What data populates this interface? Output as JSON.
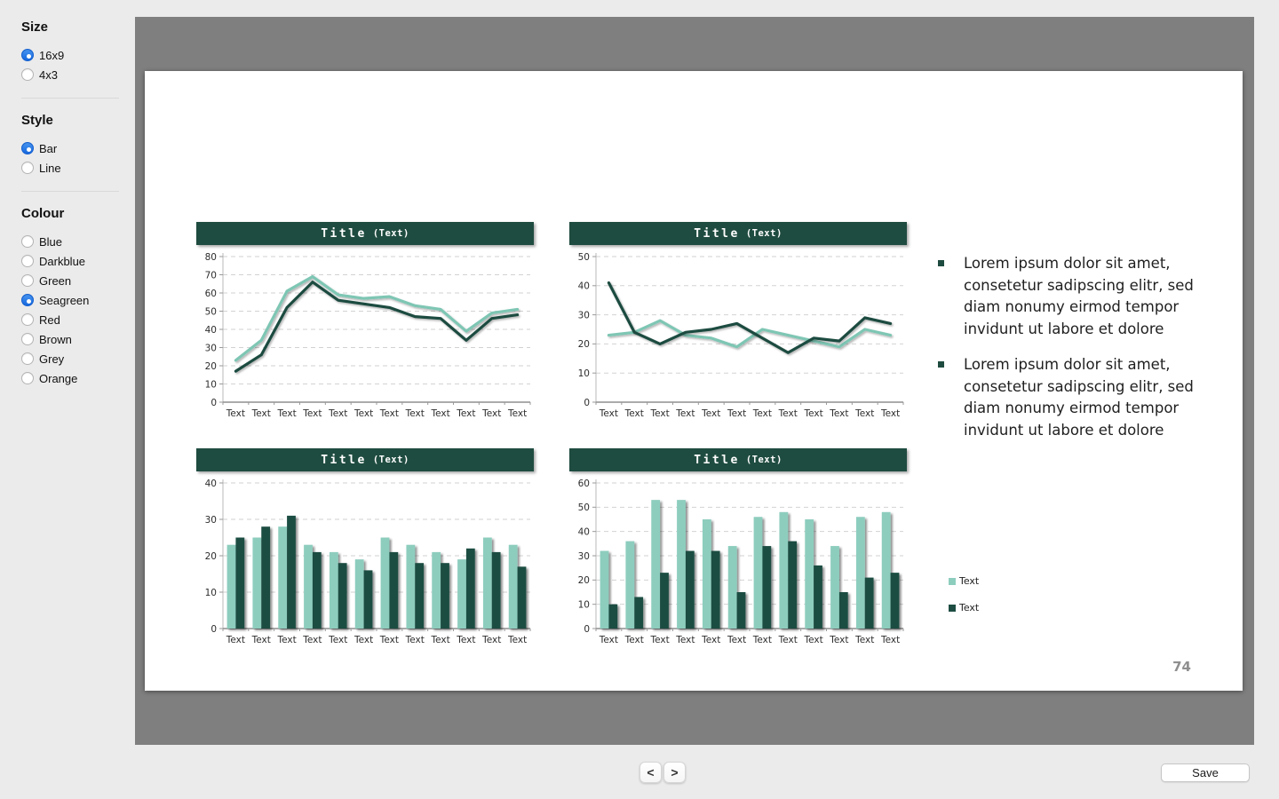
{
  "sidebar": {
    "groups": [
      {
        "name": "size",
        "label": "Size",
        "options": [
          {
            "label": "16x9",
            "selected": true
          },
          {
            "label": "4x3",
            "selected": false
          }
        ]
      },
      {
        "name": "style",
        "label": "Style",
        "options": [
          {
            "label": "Bar",
            "selected": true
          },
          {
            "label": "Line",
            "selected": false
          }
        ]
      },
      {
        "name": "colour",
        "label": "Colour",
        "options": [
          {
            "label": "Blue",
            "selected": false
          },
          {
            "label": "Darkblue",
            "selected": false
          },
          {
            "label": "Green",
            "selected": false
          },
          {
            "label": "Seagreen",
            "selected": true
          },
          {
            "label": "Red",
            "selected": false
          },
          {
            "label": "Brown",
            "selected": false
          },
          {
            "label": "Grey",
            "selected": false
          },
          {
            "label": "Orange",
            "selected": false
          }
        ]
      }
    ]
  },
  "slide": {
    "bullets": [
      "Lorem ipsum dolor sit amet, consetetur sadipscing elitr, sed diam nonumy eirmod tempor invidunt ut labore et dolore",
      "Lorem ipsum dolor sit amet, consetetur sadipscing elitr, sed diam nonumy eirmod tempor invidunt ut labore et dolore"
    ],
    "legend": [
      {
        "label": "Text",
        "color": "#8DCDBE"
      },
      {
        "label": "Text",
        "color": "#1D4D42"
      }
    ],
    "page_number": "74"
  },
  "controls": {
    "prev": "<",
    "next": ">",
    "save": "Save"
  },
  "colors": {
    "radio_selected": "#1A73E8",
    "title_bar": "#1F4C40",
    "series_light": "#8DCDBE",
    "series_dark": "#1D4D42",
    "canvas_gray": "#7F7F7F"
  },
  "chart_data": [
    {
      "type": "line",
      "title": "Title",
      "subtitle": "(Text)",
      "categories": [
        "Text",
        "Text",
        "Text",
        "Text",
        "Text",
        "Text",
        "Text",
        "Text",
        "Text",
        "Text",
        "Text",
        "Text"
      ],
      "ylim": [
        0,
        80
      ],
      "ytick": 10,
      "grid": true,
      "legend_position": "none",
      "series": [
        {
          "name": "Text",
          "color": "#7EC6B4",
          "values": [
            23,
            34,
            61,
            69,
            59,
            57,
            58,
            53,
            51,
            39,
            49,
            51
          ]
        },
        {
          "name": "Text",
          "color": "#1D4B3F",
          "values": [
            17,
            26,
            52,
            66,
            56,
            54,
            52,
            47,
            46,
            34,
            46,
            48
          ]
        }
      ]
    },
    {
      "type": "line",
      "title": "Title",
      "subtitle": "(Text)",
      "categories": [
        "Text",
        "Text",
        "Text",
        "Text",
        "Text",
        "Text",
        "Text",
        "Text",
        "Text",
        "Text",
        "Text",
        "Text"
      ],
      "ylim": [
        0,
        50
      ],
      "ytick": 10,
      "grid": true,
      "legend_position": "none",
      "series": [
        {
          "name": "Text",
          "color": "#7EC6B4",
          "values": [
            23,
            24,
            28,
            23,
            22,
            19,
            25,
            23,
            21,
            19,
            25,
            23
          ]
        },
        {
          "name": "Text",
          "color": "#1D4B3F",
          "values": [
            41,
            24,
            20,
            24,
            25,
            27,
            22,
            17,
            22,
            21,
            29,
            27
          ]
        }
      ]
    },
    {
      "type": "bar",
      "title": "Title",
      "subtitle": "(Text)",
      "categories": [
        "Text",
        "Text",
        "Text",
        "Text",
        "Text",
        "Text",
        "Text",
        "Text",
        "Text",
        "Text",
        "Text",
        "Text"
      ],
      "ylim": [
        0,
        40
      ],
      "ytick": 10,
      "grid": true,
      "legend_position": "none",
      "series": [
        {
          "name": "Text",
          "color": "#8DCDBE",
          "values": [
            23,
            25,
            28,
            23,
            21,
            19,
            25,
            23,
            21,
            19,
            25,
            23
          ]
        },
        {
          "name": "Text",
          "color": "#1D4D42",
          "values": [
            25,
            28,
            31,
            21,
            18,
            16,
            21,
            18,
            18,
            22,
            21,
            17
          ]
        }
      ]
    },
    {
      "type": "bar",
      "title": "Title",
      "subtitle": "(Text)",
      "categories": [
        "Text",
        "Text",
        "Text",
        "Text",
        "Text",
        "Text",
        "Text",
        "Text",
        "Text",
        "Text",
        "Text",
        "Text"
      ],
      "ylim": [
        0,
        60
      ],
      "ytick": 10,
      "grid": true,
      "legend_position": "none",
      "series": [
        {
          "name": "Text",
          "color": "#8DCDBE",
          "values": [
            32,
            36,
            53,
            53,
            45,
            34,
            46,
            48,
            45,
            34,
            46,
            48
          ]
        },
        {
          "name": "Text",
          "color": "#1D4D42",
          "values": [
            10,
            13,
            23,
            32,
            32,
            15,
            34,
            36,
            26,
            15,
            21,
            23
          ]
        }
      ]
    }
  ]
}
